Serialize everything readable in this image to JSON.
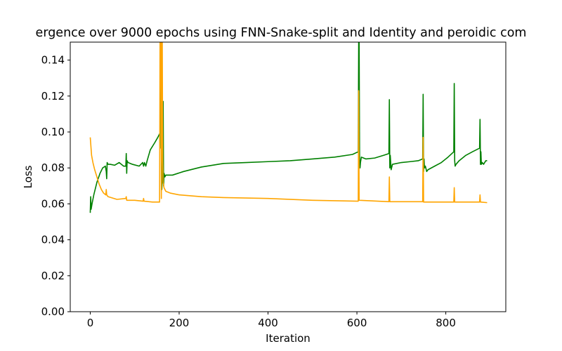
{
  "chart_data": {
    "type": "line",
    "title": "ergence over 9000 epochs using FNN-Snake-split and Identity and peroidic com",
    "xlabel": "Iteration",
    "ylabel": "Loss",
    "xlim": [
      -45,
      935
    ],
    "ylim": [
      0.0,
      0.15
    ],
    "xticks": [
      0,
      200,
      400,
      600,
      800
    ],
    "xtick_labels": [
      "0",
      "200",
      "400",
      "600",
      "800"
    ],
    "yticks": [
      0.0,
      0.02,
      0.04,
      0.06,
      0.08,
      0.1,
      0.12,
      0.14
    ],
    "ytick_labels": [
      "0.00",
      "0.02",
      "0.04",
      "0.06",
      "0.08",
      "0.10",
      "0.12",
      "0.14"
    ],
    "grid": false,
    "legend": "none",
    "series": [
      {
        "color": "#008000",
        "points": [
          [
            0,
            0.055
          ],
          [
            1,
            0.064
          ],
          [
            2,
            0.057
          ],
          [
            4,
            0.06
          ],
          [
            8,
            0.065
          ],
          [
            15,
            0.072
          ],
          [
            22,
            0.077
          ],
          [
            28,
            0.08
          ],
          [
            34,
            0.081
          ],
          [
            36,
            0.078
          ],
          [
            37,
            0.074
          ],
          [
            38,
            0.083
          ],
          [
            40,
            0.082
          ],
          [
            45,
            0.082
          ],
          [
            55,
            0.0815
          ],
          [
            65,
            0.083
          ],
          [
            75,
            0.081
          ],
          [
            80,
            0.081
          ],
          [
            81,
            0.088
          ],
          [
            82,
            0.077
          ],
          [
            83,
            0.084
          ],
          [
            85,
            0.083
          ],
          [
            95,
            0.082
          ],
          [
            110,
            0.081
          ],
          [
            118,
            0.083
          ],
          [
            120,
            0.081
          ],
          [
            122,
            0.083
          ],
          [
            125,
            0.081
          ],
          [
            128,
            0.084
          ],
          [
            135,
            0.09
          ],
          [
            145,
            0.094
          ],
          [
            152,
            0.097
          ],
          [
            156,
            0.099
          ],
          [
            157,
            0.091
          ],
          [
            158,
            0.15
          ],
          [
            160,
            0.15
          ],
          [
            161,
            0.068
          ],
          [
            162,
            0.075
          ],
          [
            163,
            0.085
          ],
          [
            164,
            0.117
          ],
          [
            165,
            0.07
          ],
          [
            166,
            0.077
          ],
          [
            168,
            0.075
          ],
          [
            170,
            0.076
          ],
          [
            185,
            0.076
          ],
          [
            210,
            0.078
          ],
          [
            250,
            0.0805
          ],
          [
            300,
            0.0825
          ],
          [
            350,
            0.083
          ],
          [
            400,
            0.0835
          ],
          [
            450,
            0.084
          ],
          [
            500,
            0.085
          ],
          [
            550,
            0.086
          ],
          [
            590,
            0.0875
          ],
          [
            603,
            0.089
          ],
          [
            604,
            0.15
          ],
          [
            605,
            0.15
          ],
          [
            606,
            0.086
          ],
          [
            607,
            0.08
          ],
          [
            608,
            0.083
          ],
          [
            610,
            0.086
          ],
          [
            620,
            0.085
          ],
          [
            640,
            0.0855
          ],
          [
            660,
            0.087
          ],
          [
            672,
            0.088
          ],
          [
            673,
            0.118
          ],
          [
            674,
            0.08
          ],
          [
            675,
            0.087
          ],
          [
            677,
            0.079
          ],
          [
            680,
            0.082
          ],
          [
            700,
            0.083
          ],
          [
            720,
            0.0835
          ],
          [
            738,
            0.084
          ],
          [
            748,
            0.085
          ],
          [
            749,
            0.121
          ],
          [
            750,
            0.078
          ],
          [
            751,
            0.085
          ],
          [
            752,
            0.08
          ],
          [
            754,
            0.081
          ],
          [
            757,
            0.078
          ],
          [
            760,
            0.079
          ],
          [
            775,
            0.081
          ],
          [
            790,
            0.083
          ],
          [
            805,
            0.086
          ],
          [
            818,
            0.089
          ],
          [
            819,
            0.127
          ],
          [
            820,
            0.084
          ],
          [
            821,
            0.081
          ],
          [
            823,
            0.082
          ],
          [
            830,
            0.084
          ],
          [
            845,
            0.087
          ],
          [
            860,
            0.089
          ],
          [
            876,
            0.091
          ],
          [
            877,
            0.107
          ],
          [
            878,
            0.082
          ],
          [
            879,
            0.089
          ],
          [
            880,
            0.082
          ],
          [
            882,
            0.083
          ],
          [
            885,
            0.082
          ],
          [
            890,
            0.084
          ],
          [
            893,
            0.084
          ]
        ]
      },
      {
        "color": "#ffa500",
        "points": [
          [
            0,
            0.097
          ],
          [
            3,
            0.087
          ],
          [
            6,
            0.083
          ],
          [
            10,
            0.079
          ],
          [
            15,
            0.075
          ],
          [
            20,
            0.071
          ],
          [
            25,
            0.068
          ],
          [
            30,
            0.066
          ],
          [
            35,
            0.065
          ],
          [
            36,
            0.068
          ],
          [
            37,
            0.065
          ],
          [
            40,
            0.064
          ],
          [
            60,
            0.0625
          ],
          [
            80,
            0.063
          ],
          [
            81,
            0.064
          ],
          [
            82,
            0.062
          ],
          [
            100,
            0.062
          ],
          [
            119,
            0.0615
          ],
          [
            120,
            0.063
          ],
          [
            121,
            0.0615
          ],
          [
            140,
            0.061
          ],
          [
            156,
            0.061
          ],
          [
            157,
            0.15
          ],
          [
            159,
            0.15
          ],
          [
            160,
            0.063
          ],
          [
            161,
            0.15
          ],
          [
            162,
            0.15
          ],
          [
            163,
            0.084
          ],
          [
            164,
            0.072
          ],
          [
            166,
            0.069
          ],
          [
            170,
            0.067
          ],
          [
            180,
            0.066
          ],
          [
            200,
            0.065
          ],
          [
            250,
            0.064
          ],
          [
            300,
            0.0635
          ],
          [
            400,
            0.063
          ],
          [
            500,
            0.062
          ],
          [
            603,
            0.0615
          ],
          [
            604,
            0.123
          ],
          [
            605,
            0.062
          ],
          [
            606,
            0.062
          ],
          [
            672,
            0.0612
          ],
          [
            673,
            0.075
          ],
          [
            674,
            0.0612
          ],
          [
            748,
            0.0612
          ],
          [
            749,
            0.097
          ],
          [
            750,
            0.061
          ],
          [
            818,
            0.061
          ],
          [
            819,
            0.069
          ],
          [
            820,
            0.061
          ],
          [
            876,
            0.061
          ],
          [
            877,
            0.065
          ],
          [
            878,
            0.061
          ],
          [
            893,
            0.0607
          ]
        ]
      }
    ]
  }
}
